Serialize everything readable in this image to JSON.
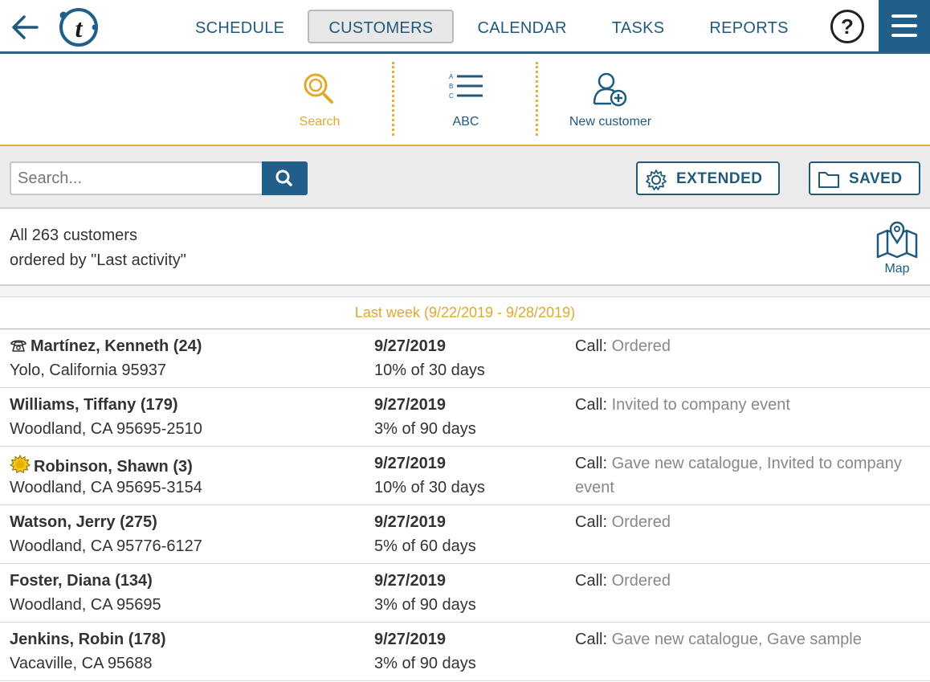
{
  "nav": {
    "tabs": [
      {
        "label": "SCHEDULE",
        "active": false
      },
      {
        "label": "CUSTOMERS",
        "active": true
      },
      {
        "label": "CALENDAR",
        "active": false
      },
      {
        "label": "TASKS",
        "active": false
      },
      {
        "label": "REPORTS",
        "active": false
      }
    ],
    "help_label": "?"
  },
  "subtools": {
    "search_label": "Search",
    "abc_label": "ABC",
    "new_customer_label": "New customer"
  },
  "searchbar": {
    "placeholder": "Search...",
    "extended_label": "EXTENDED",
    "saved_label": "SAVED"
  },
  "summary": {
    "line1": "All 263 customers",
    "line2": "ordered by \"Last activity\"",
    "map_label": "Map"
  },
  "group": {
    "header": "Last week (9/22/2019 - 9/28/2019)"
  },
  "customers": [
    {
      "icon": "phone-icon",
      "name": "Martínez, Kenneth (24)",
      "address": "Yolo, California 95937",
      "date": "9/27/2019",
      "progress": "10% of 30 days",
      "activity_type": "Call:",
      "activity_detail": "Ordered"
    },
    {
      "icon": "",
      "name": "Williams, Tiffany (179)",
      "address": "Woodland, CA 95695-2510",
      "date": "9/27/2019",
      "progress": "3% of 90 days",
      "activity_type": "Call:",
      "activity_detail": "Invited to company event"
    },
    {
      "icon": "sun-badge-icon",
      "name": "Robinson, Shawn (3)",
      "address": "Woodland, CA 95695-3154",
      "date": "9/27/2019",
      "progress": "10% of 30 days",
      "activity_type": "Call:",
      "activity_detail": "Gave new catalogue, Invited to company event"
    },
    {
      "icon": "",
      "name": "Watson, Jerry (275)",
      "address": "Woodland, CA 95776-6127",
      "date": "9/27/2019",
      "progress": "5% of 60 days",
      "activity_type": "Call:",
      "activity_detail": "Ordered"
    },
    {
      "icon": "",
      "name": "Foster, Diana (134)",
      "address": "Woodland, CA 95695",
      "date": "9/27/2019",
      "progress": "3% of 90 days",
      "activity_type": "Call:",
      "activity_detail": "Ordered"
    },
    {
      "icon": "",
      "name": "Jenkins, Robin (178)",
      "address": "Vacaville, CA 95688",
      "date": "9/27/2019",
      "progress": "3% of 90 days",
      "activity_type": "Call:",
      "activity_detail": "Gave new catalogue, Gave sample"
    }
  ],
  "colors": {
    "primary": "#1f5f8a",
    "accent": "#e0a92c",
    "muted_text": "#888888"
  }
}
